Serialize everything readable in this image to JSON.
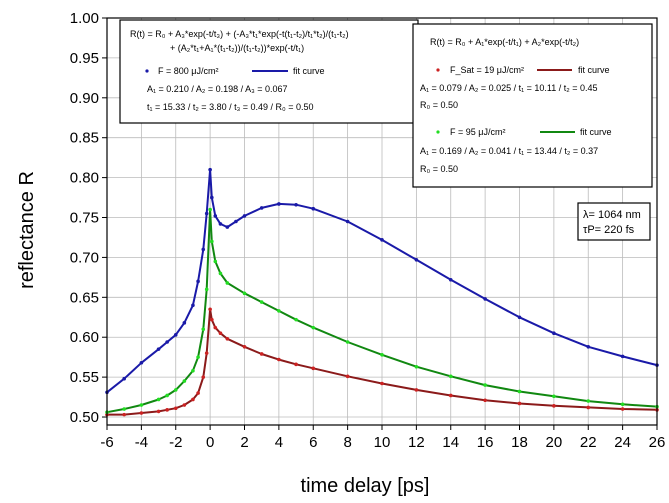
{
  "chart_data": {
    "type": "scatter",
    "xlabel": "time delay [ps]",
    "ylabel": "reflectance R",
    "xlim": [
      -6,
      26
    ],
    "ylim": [
      0.49,
      1.0
    ],
    "xticks": [
      -6,
      -4,
      -2,
      0,
      2,
      4,
      6,
      8,
      10,
      12,
      14,
      16,
      18,
      20,
      22,
      24,
      26
    ],
    "yticks": [
      0.5,
      0.55,
      0.6,
      0.65,
      0.7,
      0.75,
      0.8,
      0.85,
      0.9,
      0.95,
      1.0
    ],
    "ytick_labels": [
      "0.50",
      "0.55",
      "0.60",
      "0.65",
      "0.70",
      "0.75",
      "0.80",
      "0.85",
      "0.90",
      "0.95",
      "1.00"
    ],
    "grid": true,
    "series": [
      {
        "name": "F = 800 μJ/cm²",
        "color": "#1a1aa8",
        "fit_color": "#1a1aa8",
        "x": [
          -6,
          -5,
          -4,
          -3,
          -2.5,
          -2,
          -1.5,
          -1,
          -0.7,
          -0.4,
          -0.2,
          0,
          0.1,
          0.3,
          0.6,
          1,
          1.5,
          2,
          3,
          4,
          5,
          6,
          8,
          10,
          12,
          14,
          16,
          18,
          20,
          22,
          24,
          26
        ],
        "y": [
          0.531,
          0.548,
          0.568,
          0.585,
          0.594,
          0.603,
          0.618,
          0.64,
          0.67,
          0.71,
          0.755,
          0.81,
          0.775,
          0.752,
          0.742,
          0.738,
          0.745,
          0.752,
          0.762,
          0.767,
          0.766,
          0.761,
          0.745,
          0.722,
          0.697,
          0.672,
          0.648,
          0.625,
          0.605,
          0.588,
          0.576,
          0.565
        ]
      },
      {
        "name": "F = 95 μJ/cm²",
        "color": "#22dd22",
        "fit_color": "#118811",
        "x": [
          -6,
          -5,
          -4,
          -3,
          -2.5,
          -2,
          -1.5,
          -1,
          -0.7,
          -0.4,
          -0.2,
          0,
          0.1,
          0.3,
          0.6,
          1,
          2,
          3,
          4,
          5,
          6,
          8,
          10,
          12,
          14,
          16,
          18,
          20,
          22,
          24,
          26
        ],
        "y": [
          0.506,
          0.51,
          0.515,
          0.522,
          0.527,
          0.534,
          0.545,
          0.558,
          0.575,
          0.61,
          0.66,
          0.76,
          0.72,
          0.695,
          0.68,
          0.668,
          0.655,
          0.644,
          0.633,
          0.622,
          0.612,
          0.594,
          0.578,
          0.563,
          0.551,
          0.54,
          0.532,
          0.526,
          0.52,
          0.516,
          0.513
        ]
      },
      {
        "name": "F_Sat = 19 μJ/cm²",
        "color": "#cc2222",
        "fit_color": "#8b1a1a",
        "x": [
          -6,
          -5,
          -4,
          -3,
          -2.5,
          -2,
          -1.5,
          -1,
          -0.7,
          -0.4,
          -0.2,
          0,
          0.1,
          0.3,
          0.6,
          1,
          2,
          3,
          4,
          5,
          6,
          8,
          10,
          12,
          14,
          16,
          18,
          20,
          22,
          24,
          26
        ],
        "y": [
          0.503,
          0.503,
          0.505,
          0.507,
          0.509,
          0.511,
          0.515,
          0.522,
          0.53,
          0.55,
          0.58,
          0.635,
          0.622,
          0.612,
          0.605,
          0.598,
          0.588,
          0.579,
          0.572,
          0.566,
          0.561,
          0.551,
          0.542,
          0.534,
          0.527,
          0.521,
          0.517,
          0.514,
          0.512,
          0.51,
          0.509
        ]
      }
    ],
    "annotations": {
      "box1": {
        "formula_line1": "R(t) = R₀ + A₃*exp(-t/t₃) + (-A₃*t₁*exp(-t(t₁-t₂)/t₁*t₂)/(t₁-t₂)",
        "formula_line2": "+ (A₂*t₁+A₁*(t₁-t₂))/(t₁-t₂))*exp(-t/t₁)",
        "legend_data": "F = 800 μJ/cm²",
        "legend_fit": "fit curve",
        "params1": "A₁ = 0.210 / A₂ = 0.198 / A₃ = 0.067",
        "params2": "t₁ = 15.33 / t₂ = 3.80 / t₃ = 0.49 / R₀ = 0.50"
      },
      "box2": {
        "formula": "R(t) = R₀ + A₁*exp(-t/t₁) + A₂*exp(-t/t₂)",
        "legend_red_data": "F_Sat = 19 μJ/cm²",
        "legend_red_fit": "fit curve",
        "red_params1": "A₁ = 0.079 / A₂ = 0.025 / t₁ = 10.11 / t₂ = 0.45",
        "red_params2": "R₀ = 0.50",
        "legend_green_data": "F = 95 μJ/cm²",
        "legend_green_fit": "fit curve",
        "green_params1": "A₁ = 0.169 / A₂ = 0.041 / t₁ = 13.44 / t₂ = 0.37",
        "green_params2": "R₀ = 0.50"
      },
      "box3": {
        "line1": "λ= 1064 nm",
        "line2": "τP= 220 fs"
      }
    }
  }
}
